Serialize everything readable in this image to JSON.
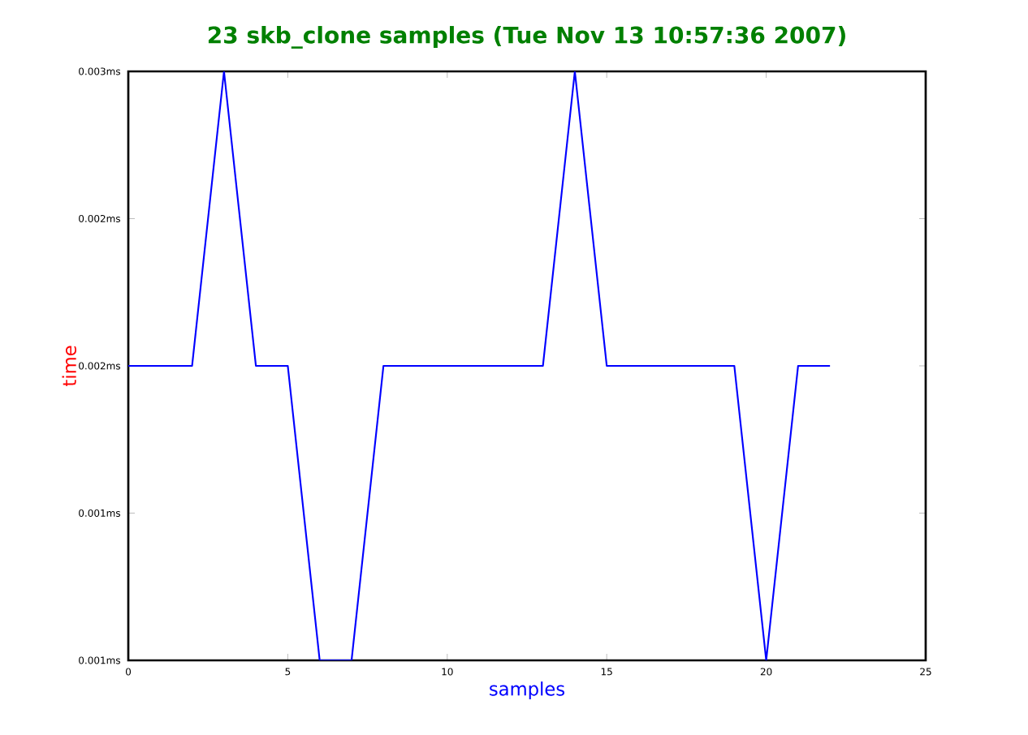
{
  "chart_data": {
    "type": "line",
    "title": "23 skb_clone samples (Tue Nov 13 10:57:36 2007)",
    "xlabel": "samples",
    "ylabel": "time",
    "x": [
      0,
      1,
      2,
      3,
      4,
      5,
      6,
      7,
      8,
      9,
      10,
      11,
      12,
      13,
      14,
      15,
      16,
      17,
      18,
      19,
      20,
      21,
      22
    ],
    "values": [
      0.002,
      0.002,
      0.002,
      0.003,
      0.002,
      0.002,
      0.001,
      0.001,
      0.002,
      0.002,
      0.002,
      0.002,
      0.002,
      0.002,
      0.003,
      0.002,
      0.002,
      0.002,
      0.002,
      0.002,
      0.001,
      0.002,
      0.002
    ],
    "color": "#0000ff",
    "xlim": [
      0,
      25
    ],
    "ylim": [
      0.001,
      0.003
    ],
    "xticks": [
      0,
      5,
      10,
      15,
      20,
      25
    ],
    "yticks": [
      {
        "value": 0.001,
        "label": "0.001ms"
      },
      {
        "value": 0.0015,
        "label": "0.001ms"
      },
      {
        "value": 0.002,
        "label": "0.002ms"
      },
      {
        "value": 0.0025,
        "label": "0.002ms"
      },
      {
        "value": 0.003,
        "label": "0.003ms"
      }
    ]
  }
}
